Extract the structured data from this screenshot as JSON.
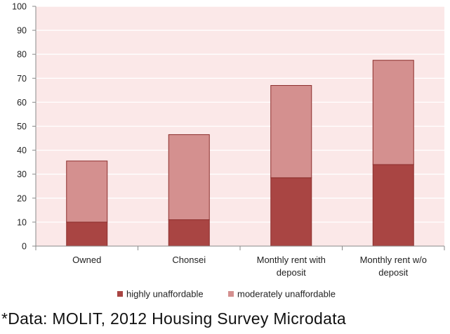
{
  "chart_data": {
    "type": "bar",
    "stacked": true,
    "categories": [
      [
        "Owned"
      ],
      [
        "Chonsei"
      ],
      [
        "Monthly rent with",
        "deposit"
      ],
      [
        "Monthly rent w/o",
        "deposit"
      ]
    ],
    "series": [
      {
        "name": "highly unaffordable",
        "values": [
          10,
          11,
          28.5,
          34
        ],
        "color": "#a94543"
      },
      {
        "name": "moderately unaffordable",
        "values": [
          25.5,
          35.5,
          38.5,
          43.5
        ],
        "color": "#d4908f"
      }
    ],
    "title": "",
    "xlabel": "",
    "ylabel": "",
    "ylim": [
      0,
      100
    ],
    "yticks": [
      0,
      10,
      20,
      30,
      40,
      50,
      60,
      70,
      80,
      90,
      100
    ],
    "plot_background": "#fbe8e8",
    "grid_color": "#ffffff",
    "bar_edge_color": "#8c2e2c",
    "legend_position": "bottom"
  },
  "footnote": "*Data: MOLIT, 2012 Housing Survey Microdata"
}
